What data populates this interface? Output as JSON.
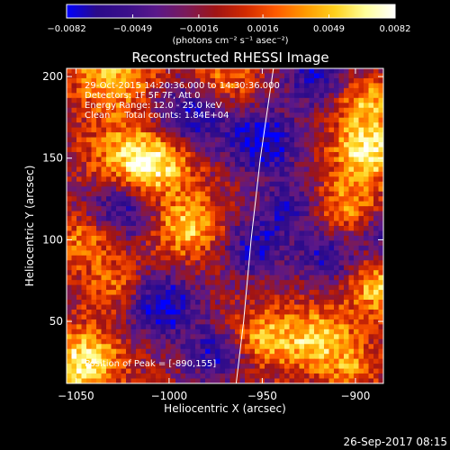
{
  "chart_data": {
    "type": "heatmap",
    "title": "Reconstructed RHESSI Image",
    "xlabel": "Heliocentric X (arcsec)",
    "ylabel": "Heliocentric Y (arcsec)",
    "xlim": [
      -1055,
      -885
    ],
    "ylim": [
      12,
      205
    ],
    "x_ticks": [
      -1050,
      -1000,
      -950,
      -900
    ],
    "x_tick_labels": [
      "−1050",
      "−1000",
      "−950",
      "−900"
    ],
    "y_ticks": [
      50,
      100,
      150,
      200
    ],
    "y_tick_labels": [
      "50",
      "100",
      "150",
      "200"
    ],
    "colorbar": {
      "min": -0.0082,
      "max": 0.0082,
      "tick_values": [
        -0.0082,
        -0.0049,
        -0.0016,
        0.0016,
        0.0049,
        0.0082
      ],
      "tick_labels": [
        "−0.0082",
        "−0.0049",
        "−0.0016",
        "0.0016",
        "0.0049",
        "0.0082"
      ],
      "unit_label": "(photons cm⁻² s⁻¹ asec⁻²)",
      "colors": [
        "#0000ff",
        "#2a0a8a",
        "#3a0f8a",
        "#5a188a",
        "#7a1a5a",
        "#a01414",
        "#d22a00",
        "#ff5a00",
        "#ff9a00",
        "#ffd21e",
        "#ffff9a",
        "#ffffff"
      ]
    },
    "annotations": [
      "29-Oct-2015 14:20:36.000 to 14:30:36.000",
      "Detectors: 1F 5F 7F, Att 0",
      "Energy Range: 12.0 - 25.0 keV",
      "Clean     Total counts: 1.84E+04"
    ],
    "peak_text": "Position of Peak = [-890,155]",
    "peak": {
      "x": -890,
      "y": 155
    },
    "limb_points": [
      [
        -964,
        12
      ],
      [
        -960,
        50
      ],
      [
        -956,
        100
      ],
      [
        -951,
        150
      ],
      [
        -944,
        205
      ]
    ],
    "blobs": [
      {
        "x": -1046,
        "y": 25,
        "amp": 0.0082,
        "s": 14
      },
      {
        "x": -1030,
        "y": 200,
        "amp": 0.006,
        "s": 16
      },
      {
        "x": -1020,
        "y": 150,
        "amp": 0.0062,
        "s": 16
      },
      {
        "x": -1005,
        "y": 145,
        "amp": 0.0052,
        "s": 14
      },
      {
        "x": -990,
        "y": 108,
        "amp": 0.0068,
        "s": 13
      },
      {
        "x": -1045,
        "y": 100,
        "amp": 0.0045,
        "s": 12
      },
      {
        "x": -1028,
        "y": 70,
        "amp": 0.0042,
        "s": 12
      },
      {
        "x": -970,
        "y": 198,
        "amp": 0.004,
        "s": 12
      },
      {
        "x": -950,
        "y": 40,
        "amp": 0.0055,
        "s": 12
      },
      {
        "x": -920,
        "y": 38,
        "amp": 0.0068,
        "s": 14
      },
      {
        "x": -893,
        "y": 155,
        "amp": 0.0082,
        "s": 13
      },
      {
        "x": -895,
        "y": 185,
        "amp": 0.0055,
        "s": 12
      },
      {
        "x": -905,
        "y": 120,
        "amp": 0.005,
        "s": 13
      },
      {
        "x": -888,
        "y": 70,
        "amp": 0.006,
        "s": 12
      },
      {
        "x": -900,
        "y": 20,
        "amp": 0.0035,
        "s": 10
      },
      {
        "x": -1025,
        "y": 120,
        "amp": -0.006,
        "s": 14
      },
      {
        "x": -990,
        "y": 175,
        "amp": -0.0065,
        "s": 14
      },
      {
        "x": -1005,
        "y": 60,
        "amp": -0.0075,
        "s": 14
      },
      {
        "x": -975,
        "y": 30,
        "amp": -0.0055,
        "s": 12
      },
      {
        "x": -950,
        "y": 160,
        "amp": -0.0072,
        "s": 14
      },
      {
        "x": -955,
        "y": 95,
        "amp": -0.0058,
        "s": 12
      },
      {
        "x": -935,
        "y": 120,
        "amp": -0.005,
        "s": 12
      },
      {
        "x": -915,
        "y": 90,
        "amp": -0.0055,
        "s": 12
      },
      {
        "x": -885,
        "y": 105,
        "amp": -0.0045,
        "s": 10
      },
      {
        "x": -920,
        "y": 200,
        "amp": -0.006,
        "s": 13
      }
    ]
  },
  "footer": {
    "timestamp": "26-Sep-2017 08:15"
  }
}
